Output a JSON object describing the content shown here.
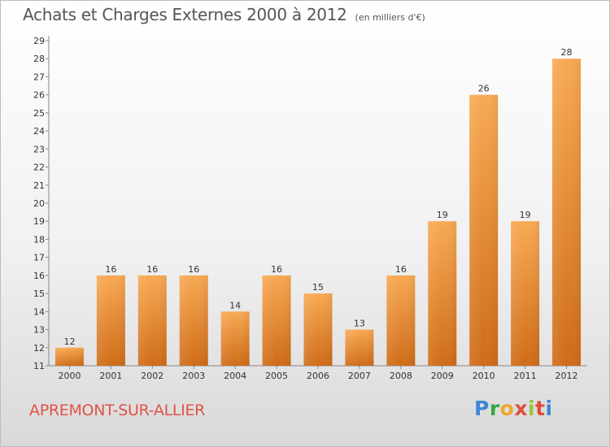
{
  "header": {
    "title": "Achats et Charges Externes 2000 à 2012",
    "subtitle": "(en milliers d'€)"
  },
  "footer": {
    "commune": "APREMONT-SUR-ALLIER",
    "logo_letters": [
      "P",
      "r",
      "o",
      "x",
      "i",
      "t",
      "i"
    ]
  },
  "colors": {
    "bar_light": "#f7a451",
    "bar_dark": "#d06c18",
    "commune_text": "#e2524a"
  },
  "chart_data": {
    "type": "bar",
    "title": "Achats et Charges Externes 2000 à 2012",
    "subtitle": "(en milliers d'€)",
    "categories": [
      "2000",
      "2001",
      "2002",
      "2003",
      "2004",
      "2005",
      "2006",
      "2007",
      "2008",
      "2009",
      "2010",
      "2011",
      "2012"
    ],
    "values": [
      12,
      16,
      16,
      16,
      14,
      16,
      15,
      13,
      16,
      19,
      26,
      19,
      28
    ],
    "ylim": [
      11,
      29
    ],
    "yticks": [
      11,
      12,
      13,
      14,
      15,
      16,
      17,
      18,
      19,
      20,
      21,
      22,
      23,
      24,
      25,
      26,
      27,
      28,
      29
    ],
    "grid": false,
    "legend": "none"
  }
}
